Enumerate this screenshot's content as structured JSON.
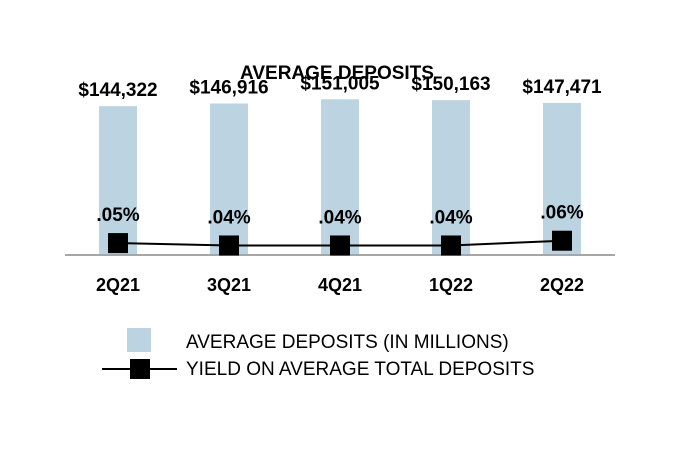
{
  "chart_data": {
    "type": "bar",
    "title": "AVERAGE DEPOSITS",
    "categories": [
      "2Q21",
      "3Q21",
      "4Q21",
      "1Q22",
      "2Q22"
    ],
    "series": [
      {
        "name": "AVERAGE DEPOSITS (IN MILLIONS)",
        "type": "bar",
        "values": [
          144322,
          146916,
          151005,
          150163,
          147471
        ],
        "labels": [
          "$144,322",
          "$146,916",
          "$151,005",
          "$150,163",
          "$147,471"
        ],
        "color": "#bcd4e1"
      },
      {
        "name": "YIELD ON AVERAGE TOTAL DEPOSITS",
        "type": "line",
        "values": [
          0.05,
          0.04,
          0.04,
          0.04,
          0.06
        ],
        "labels": [
          ".05%",
          ".04%",
          ".04%",
          ".04%",
          ".06%"
        ],
        "color": "#000000"
      }
    ],
    "bar_ylim": [
      0,
      160000
    ],
    "line_ylim": [
      0,
      0.5
    ],
    "legend_position": "bottom"
  }
}
